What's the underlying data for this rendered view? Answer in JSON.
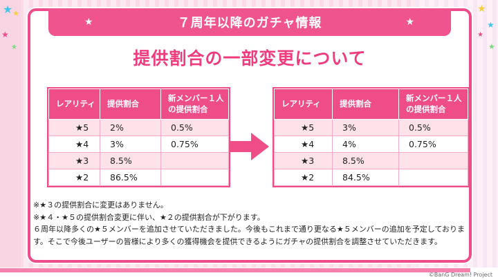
{
  "header": {
    "title": "７周年以降のガチャ情報"
  },
  "heading": "提供割合の一部変更について",
  "columns": {
    "rarity": "レアリティ",
    "rate": "提供割合",
    "new_member_line1": "新メンバー１人",
    "new_member_line2": "の提供割合"
  },
  "before_rows": [
    {
      "rarity": "★5",
      "rate": "2%",
      "new_member": "0.5%"
    },
    {
      "rarity": "★4",
      "rate": "3%",
      "new_member": "0.75%"
    },
    {
      "rarity": "★3",
      "rate": "8.5%",
      "new_member": ""
    },
    {
      "rarity": "★2",
      "rate": "86.5%",
      "new_member": ""
    }
  ],
  "after_rows": [
    {
      "rarity": "★5",
      "rate": "3%",
      "new_member": "0.5%"
    },
    {
      "rarity": "★4",
      "rate": "4%",
      "new_member": "0.75%"
    },
    {
      "rarity": "★3",
      "rate": "8.5%",
      "new_member": ""
    },
    {
      "rarity": "★2",
      "rate": "84.5%",
      "new_member": ""
    }
  ],
  "notes": [
    "※★３の提供割合に変更はありません。",
    "※★４・★５の提供割合変更に伴い、★２の提供割合が下がります。",
    "６周年以降多くの★５メンバーを追加させていただきました。今後もこれまで通り更なる★５メンバーの追加を予定しております。そこで今後ユーザーの皆様により多くの獲得機会を提供できるようにガチャの提供割合を調整させていただきます。"
  ],
  "copyright": "©BanG Dream! Project",
  "colors": {
    "accent": "#ef4d87",
    "row_pink": "#fde2ea",
    "heading": "#ee3c7e"
  }
}
